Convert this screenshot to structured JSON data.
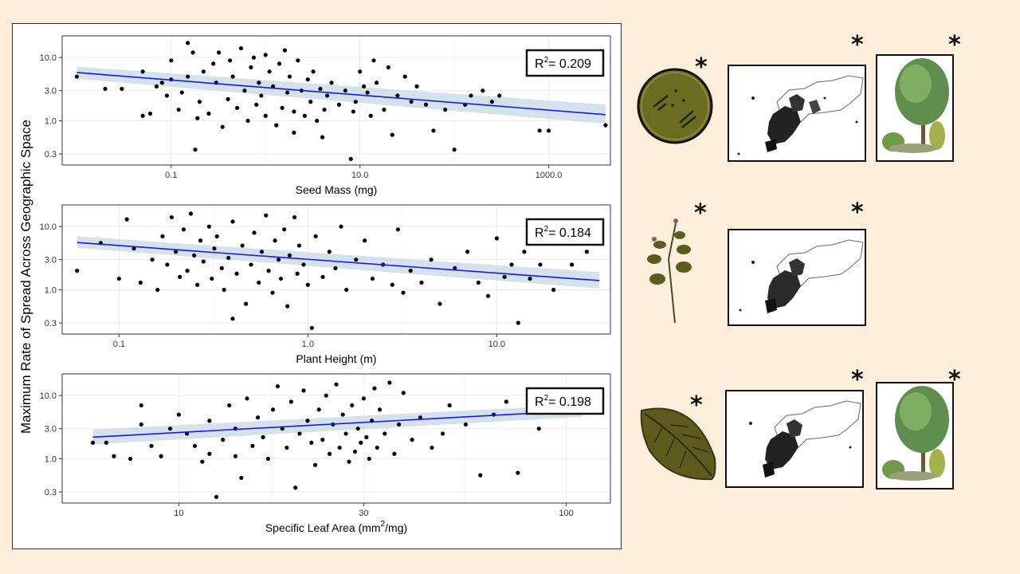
{
  "ylabel": "Maximum Rate of Spread Across Geographic Space",
  "colors": {
    "background": "#fdefdb",
    "points": "#000000",
    "trend": "#1a1adb",
    "band": "#c9dbe8",
    "grid": "#ebebeb"
  },
  "annotation_mark": "*",
  "chart_data": [
    {
      "type": "scatter",
      "xlabel": "Seed Mass (mg)",
      "xlabel_unit": "",
      "xscale": "log",
      "yscale": "log",
      "xlim": [
        0.007,
        4500
      ],
      "ylim": [
        0.2,
        22
      ],
      "xticks": [
        0.1,
        10,
        1000
      ],
      "xtick_labels": [
        "0.1",
        "10.0",
        "1000.0"
      ],
      "yticks": [
        0.3,
        1,
        3,
        10
      ],
      "ytick_labels": [
        "0.3",
        "1.0",
        "3.0",
        "10.0"
      ],
      "r2_label": "= 0.209",
      "trend": {
        "x": [
          0.01,
          4000
        ],
        "y": [
          5.8,
          1.25
        ],
        "band_upper": [
          7.2,
          1.8
        ],
        "band_lower": [
          4.6,
          0.9
        ]
      },
      "points": [
        [
          0.01,
          5
        ],
        [
          0.02,
          3.2
        ],
        [
          0.03,
          3.2
        ],
        [
          0.05,
          1.2
        ],
        [
          0.05,
          6
        ],
        [
          0.06,
          1.3
        ],
        [
          0.07,
          3.5
        ],
        [
          0.08,
          4
        ],
        [
          0.09,
          2.5
        ],
        [
          0.1,
          4.5
        ],
        [
          0.1,
          9
        ],
        [
          0.12,
          1.5
        ],
        [
          0.13,
          2.8
        ],
        [
          0.15,
          17
        ],
        [
          0.15,
          5
        ],
        [
          0.17,
          12
        ],
        [
          0.18,
          0.35
        ],
        [
          0.19,
          1.1
        ],
        [
          0.2,
          2
        ],
        [
          0.22,
          6
        ],
        [
          0.25,
          1.3
        ],
        [
          0.28,
          8
        ],
        [
          0.3,
          4
        ],
        [
          0.32,
          12
        ],
        [
          0.35,
          0.8
        ],
        [
          0.4,
          2.2
        ],
        [
          0.42,
          9
        ],
        [
          0.45,
          5
        ],
        [
          0.5,
          1.6
        ],
        [
          0.55,
          14
        ],
        [
          0.6,
          3
        ],
        [
          0.65,
          1
        ],
        [
          0.7,
          7
        ],
        [
          0.75,
          10
        ],
        [
          0.8,
          1.8
        ],
        [
          0.85,
          4
        ],
        [
          0.9,
          2.5
        ],
        [
          1,
          11
        ],
        [
          1,
          1.2
        ],
        [
          1.1,
          6
        ],
        [
          1.2,
          3.5
        ],
        [
          1.3,
          0.85
        ],
        [
          1.4,
          8
        ],
        [
          1.5,
          1.6
        ],
        [
          1.6,
          13
        ],
        [
          1.7,
          2.8
        ],
        [
          1.8,
          5
        ],
        [
          2,
          0.65
        ],
        [
          2,
          1.4
        ],
        [
          2.2,
          9
        ],
        [
          2.4,
          3
        ],
        [
          2.6,
          1.2
        ],
        [
          2.8,
          4.5
        ],
        [
          3,
          2
        ],
        [
          3.2,
          6
        ],
        [
          3.5,
          1
        ],
        [
          3.8,
          3.2
        ],
        [
          4,
          0.55
        ],
        [
          4.2,
          1.5
        ],
        [
          4.5,
          2.5
        ],
        [
          5,
          4
        ],
        [
          6,
          1.8
        ],
        [
          7,
          3
        ],
        [
          8,
          0.25
        ],
        [
          8.5,
          1.4
        ],
        [
          9,
          2
        ],
        [
          10,
          6
        ],
        [
          11,
          3.5
        ],
        [
          12,
          2.8
        ],
        [
          13,
          1.2
        ],
        [
          14,
          9
        ],
        [
          15,
          4
        ],
        [
          18,
          1.5
        ],
        [
          20,
          7
        ],
        [
          22,
          0.6
        ],
        [
          25,
          2.5
        ],
        [
          30,
          5
        ],
        [
          35,
          2
        ],
        [
          40,
          3.5
        ],
        [
          50,
          1.8
        ],
        [
          60,
          0.7
        ],
        [
          80,
          1.5
        ],
        [
          100,
          0.35
        ],
        [
          130,
          1.8
        ],
        [
          150,
          2.5
        ],
        [
          200,
          3
        ],
        [
          250,
          2
        ],
        [
          300,
          2.5
        ],
        [
          800,
          0.7
        ],
        [
          1000,
          0.7
        ],
        [
          4000,
          0.85
        ]
      ]
    },
    {
      "type": "scatter",
      "xlabel": "Plant Height (m)",
      "xlabel_unit": "",
      "xscale": "log",
      "yscale": "log",
      "xlim": [
        0.05,
        40
      ],
      "ylim": [
        0.2,
        22
      ],
      "xticks": [
        0.1,
        1,
        10
      ],
      "xtick_labels": [
        "0.1",
        "1.0",
        "10.0"
      ],
      "yticks": [
        0.3,
        1,
        3,
        10
      ],
      "ytick_labels": [
        "0.3",
        "1.0",
        "3.0",
        "10.0"
      ],
      "r2_label": "= 0.184",
      "trend": {
        "x": [
          0.06,
          35
        ],
        "y": [
          5.6,
          1.4
        ],
        "band_upper": [
          7,
          1.9
        ],
        "band_lower": [
          4.6,
          1.05
        ]
      },
      "points": [
        [
          0.06,
          2
        ],
        [
          0.08,
          5.5
        ],
        [
          0.1,
          1.5
        ],
        [
          0.11,
          13
        ],
        [
          0.12,
          4.5
        ],
        [
          0.13,
          1.3
        ],
        [
          0.15,
          3
        ],
        [
          0.16,
          1
        ],
        [
          0.17,
          7
        ],
        [
          0.18,
          2.5
        ],
        [
          0.19,
          14
        ],
        [
          0.2,
          4
        ],
        [
          0.21,
          1.6
        ],
        [
          0.22,
          9
        ],
        [
          0.23,
          2
        ],
        [
          0.24,
          16
        ],
        [
          0.25,
          3.5
        ],
        [
          0.26,
          1.2
        ],
        [
          0.27,
          6
        ],
        [
          0.28,
          2.8
        ],
        [
          0.3,
          10
        ],
        [
          0.31,
          1.5
        ],
        [
          0.32,
          4.5
        ],
        [
          0.33,
          7
        ],
        [
          0.35,
          2.2
        ],
        [
          0.36,
          1
        ],
        [
          0.38,
          3.2
        ],
        [
          0.4,
          0.35
        ],
        [
          0.4,
          12
        ],
        [
          0.42,
          1.8
        ],
        [
          0.45,
          5
        ],
        [
          0.47,
          0.6
        ],
        [
          0.5,
          2.5
        ],
        [
          0.52,
          8
        ],
        [
          0.55,
          1.3
        ],
        [
          0.57,
          4
        ],
        [
          0.6,
          15
        ],
        [
          0.62,
          2
        ],
        [
          0.65,
          0.9
        ],
        [
          0.67,
          6
        ],
        [
          0.7,
          3
        ],
        [
          0.72,
          1.5
        ],
        [
          0.75,
          9
        ],
        [
          0.78,
          0.55
        ],
        [
          0.8,
          3.5
        ],
        [
          0.85,
          14
        ],
        [
          0.88,
          1.8
        ],
        [
          0.9,
          5
        ],
        [
          0.95,
          2.5
        ],
        [
          1,
          1.2
        ],
        [
          1.05,
          0.25
        ],
        [
          1.1,
          7
        ],
        [
          1.2,
          1.6
        ],
        [
          1.3,
          4
        ],
        [
          1.4,
          2.2
        ],
        [
          1.5,
          10
        ],
        [
          1.6,
          1
        ],
        [
          1.8,
          3
        ],
        [
          2,
          6
        ],
        [
          2.2,
          1.5
        ],
        [
          2.5,
          2.5
        ],
        [
          2.8,
          1.2
        ],
        [
          3,
          9
        ],
        [
          3.2,
          0.9
        ],
        [
          3.5,
          2
        ],
        [
          4,
          1.3
        ],
        [
          4.5,
          3
        ],
        [
          5,
          0.6
        ],
        [
          6,
          2.2
        ],
        [
          7,
          4
        ],
        [
          8,
          1.3
        ],
        [
          9,
          0.8
        ],
        [
          10,
          6.5
        ],
        [
          11,
          1.6
        ],
        [
          12,
          2.5
        ],
        [
          13,
          0.3
        ],
        [
          14,
          4
        ],
        [
          15,
          1.5
        ],
        [
          17,
          2.5
        ],
        [
          20,
          1
        ],
        [
          25,
          2.5
        ],
        [
          30,
          4
        ]
      ]
    },
    {
      "type": "scatter",
      "xlabel": "Specific Leaf Area (mm",
      "xlabel_unit": "2/mg)",
      "xscale": "log",
      "yscale": "log",
      "xlim": [
        5,
        130
      ],
      "ylim": [
        0.2,
        22
      ],
      "xticks": [
        10,
        30,
        100
      ],
      "xtick_labels": [
        "10",
        "30",
        "100"
      ],
      "yticks": [
        0.3,
        1,
        3,
        10
      ],
      "ytick_labels": [
        "0.3",
        "1.0",
        "3.0",
        "10.0"
      ],
      "r2_label": "= 0.198",
      "trend": {
        "x": [
          6,
          110
        ],
        "y": [
          2.2,
          5.8
        ],
        "band_upper": [
          2.9,
          7.2
        ],
        "band_lower": [
          1.7,
          4.6
        ]
      },
      "points": [
        [
          6,
          1.8
        ],
        [
          6.5,
          1.8
        ],
        [
          6.8,
          1.1
        ],
        [
          7.5,
          1
        ],
        [
          8,
          7
        ],
        [
          8,
          3.5
        ],
        [
          8.5,
          1.6
        ],
        [
          9,
          1.1
        ],
        [
          9.5,
          3
        ],
        [
          10,
          5
        ],
        [
          10.5,
          2.5
        ],
        [
          11,
          1.6
        ],
        [
          11.5,
          0.9
        ],
        [
          12,
          4
        ],
        [
          12,
          1.2
        ],
        [
          12.5,
          0.25
        ],
        [
          13,
          2
        ],
        [
          13.5,
          7
        ],
        [
          14,
          1.1
        ],
        [
          14,
          3
        ],
        [
          14.5,
          0.5
        ],
        [
          15,
          9
        ],
        [
          15.5,
          1.6
        ],
        [
          16,
          4.5
        ],
        [
          16.5,
          2.2
        ],
        [
          17,
          1
        ],
        [
          17.5,
          6
        ],
        [
          18,
          14
        ],
        [
          18.5,
          3
        ],
        [
          19,
          1.5
        ],
        [
          19.5,
          8
        ],
        [
          20,
          0.35
        ],
        [
          20.5,
          2.5
        ],
        [
          21,
          12
        ],
        [
          21.5,
          4
        ],
        [
          22,
          1.8
        ],
        [
          22.5,
          0.8
        ],
        [
          23,
          6
        ],
        [
          23.5,
          2
        ],
        [
          24,
          10
        ],
        [
          24.5,
          1.2
        ],
        [
          25,
          3.5
        ],
        [
          25.5,
          15
        ],
        [
          26,
          1.5
        ],
        [
          26.5,
          5
        ],
        [
          27,
          2.5
        ],
        [
          27.5,
          0.9
        ],
        [
          28,
          7
        ],
        [
          28.5,
          1.3
        ],
        [
          29,
          3
        ],
        [
          29.5,
          1.8
        ],
        [
          30,
          9
        ],
        [
          30.5,
          2.2
        ],
        [
          31,
          1
        ],
        [
          31.5,
          4
        ],
        [
          32,
          13
        ],
        [
          32.5,
          1.5
        ],
        [
          33,
          6
        ],
        [
          34,
          2.5
        ],
        [
          35,
          16
        ],
        [
          36,
          1.2
        ],
        [
          37,
          3.5
        ],
        [
          38,
          11
        ],
        [
          40,
          2
        ],
        [
          42,
          4.5
        ],
        [
          45,
          1.5
        ],
        [
          48,
          2.5
        ],
        [
          50,
          7
        ],
        [
          55,
          3.5
        ],
        [
          60,
          0.55
        ],
        [
          65,
          5
        ],
        [
          70,
          8
        ],
        [
          75,
          0.6
        ],
        [
          85,
          3
        ]
      ]
    }
  ]
}
